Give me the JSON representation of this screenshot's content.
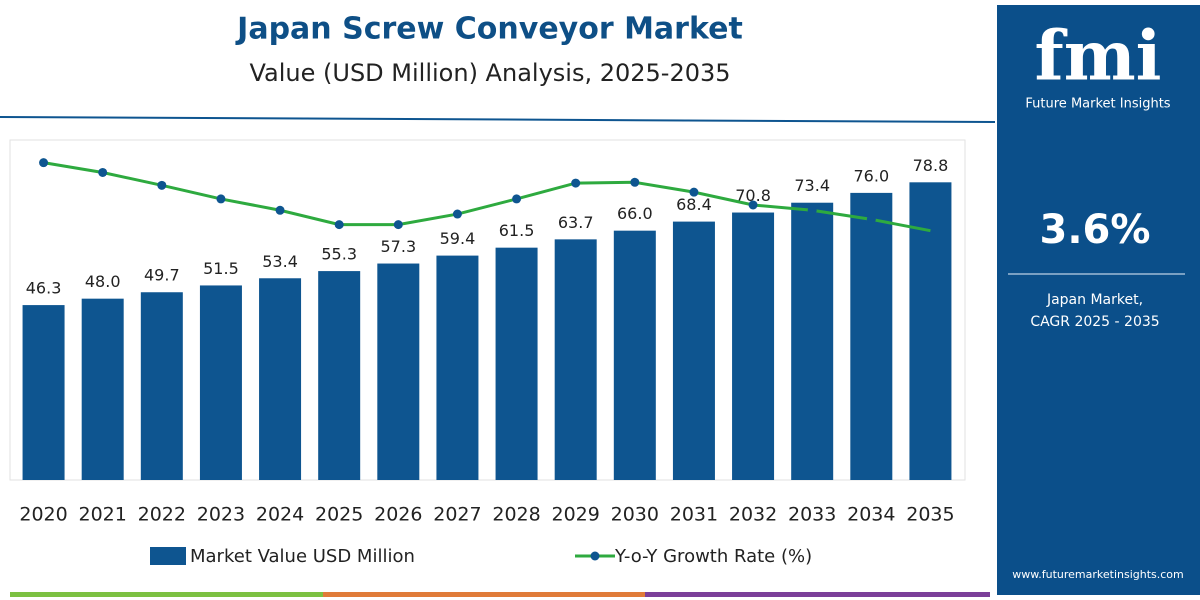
{
  "chart_data": {
    "type": "bar",
    "title": "Japan Screw Conveyor Market",
    "subtitle": "Value (USD Million) Analysis, 2025-2035",
    "categories": [
      "2020",
      "2021",
      "2022",
      "2023",
      "2024",
      "2025",
      "2026",
      "2027",
      "2028",
      "2029",
      "2030",
      "2031",
      "2032",
      "2033",
      "2034",
      "2035"
    ],
    "ylim": [
      0,
      90
    ],
    "y2lim": [
      0,
      4.5
    ],
    "series": [
      {
        "name": "Market Value USD Million",
        "type": "bar",
        "color": "#0e5590",
        "values": [
          46.3,
          48.0,
          49.7,
          51.5,
          53.4,
          55.3,
          57.3,
          59.4,
          61.5,
          63.7,
          66.0,
          68.4,
          70.8,
          73.4,
          76.0,
          78.8
        ],
        "value_labels": [
          "46.3",
          "48.0",
          "49.7",
          "51.5",
          "53.4",
          "55.3",
          "57.3",
          "59.4",
          "61.5",
          "63.7",
          "66.0",
          "68.4",
          "70.8",
          "73.4",
          "76.0",
          "78.8"
        ]
      },
      {
        "name": "Y-o-Y Growth Rate (%)",
        "type": "line",
        "axis": "y2",
        "color": "#2eaa3f",
        "marker_color": "#0e5590",
        "values": [
          4.2,
          4.07,
          3.9,
          3.72,
          3.57,
          3.38,
          3.38,
          3.52,
          3.72,
          3.93,
          3.94,
          3.81,
          3.64,
          3.57,
          3.45,
          3.3
        ]
      }
    ]
  },
  "side_panel": {
    "logo": "fmi",
    "brand": "Future Market Insights",
    "cagr": "3.6%",
    "cagr_label_1": "Japan Market,",
    "cagr_label_2": "CAGR 2025 - 2035",
    "url": "www.futuremarketinsights.com"
  }
}
